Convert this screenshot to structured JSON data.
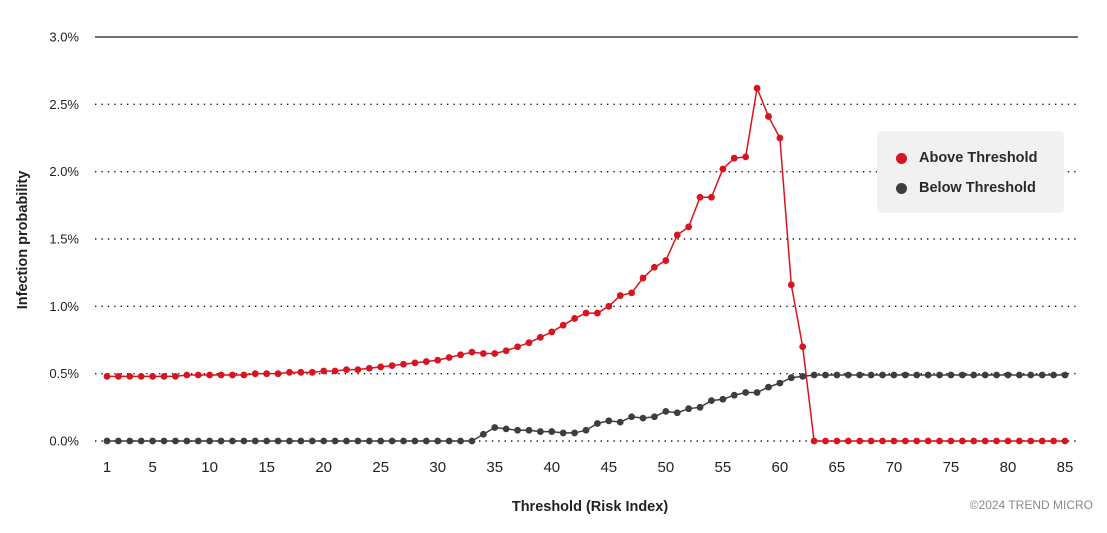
{
  "chart_data": {
    "type": "line",
    "xlabel": "Threshold (Risk Index)",
    "ylabel": "Infection probability",
    "ylim": [
      0,
      3.0
    ],
    "xlim": [
      1,
      85
    ],
    "y_ticks": [
      "0.0%",
      "0.5%",
      "1.0%",
      "1.5%",
      "2.0%",
      "2.5%",
      "3.0%"
    ],
    "x_ticks": [
      "1",
      "5",
      "10",
      "15",
      "20",
      "25",
      "30",
      "35",
      "40",
      "45",
      "50",
      "55",
      "60",
      "65",
      "70",
      "75",
      "80",
      "85"
    ],
    "grid": "horizontal dotted",
    "legend_position": "top-right",
    "series": [
      {
        "name": "Above Threshold",
        "color": "#d7141f",
        "x": [
          1,
          2,
          3,
          4,
          5,
          6,
          7,
          8,
          9,
          10,
          11,
          12,
          13,
          14,
          15,
          16,
          17,
          18,
          19,
          20,
          21,
          22,
          23,
          24,
          25,
          26,
          27,
          28,
          29,
          30,
          31,
          32,
          33,
          34,
          35,
          36,
          37,
          38,
          39,
          40,
          41,
          42,
          43,
          44,
          45,
          46,
          47,
          48,
          49,
          50,
          51,
          52,
          53,
          54,
          55,
          56,
          57,
          58,
          59,
          60,
          61,
          62,
          63,
          64,
          65,
          66,
          67,
          68,
          69,
          70,
          71,
          72,
          73,
          74,
          75,
          76,
          77,
          78,
          79,
          80,
          81,
          82,
          83,
          84,
          85
        ],
        "values": [
          0.48,
          0.48,
          0.48,
          0.48,
          0.48,
          0.48,
          0.48,
          0.49,
          0.49,
          0.49,
          0.49,
          0.49,
          0.49,
          0.5,
          0.5,
          0.5,
          0.51,
          0.51,
          0.51,
          0.52,
          0.52,
          0.53,
          0.53,
          0.54,
          0.55,
          0.56,
          0.57,
          0.58,
          0.59,
          0.6,
          0.62,
          0.64,
          0.66,
          0.65,
          0.65,
          0.67,
          0.7,
          0.73,
          0.77,
          0.81,
          0.86,
          0.91,
          0.95,
          0.95,
          1.0,
          1.08,
          1.1,
          1.21,
          1.29,
          1.34,
          1.53,
          1.59,
          1.81,
          1.81,
          2.02,
          2.1,
          2.11,
          2.62,
          2.41,
          2.25,
          1.16,
          0.7,
          0.0,
          0.0,
          0.0,
          0.0,
          0.0,
          0.0,
          0.0,
          0.0,
          0.0,
          0.0,
          0.0,
          0.0,
          0.0,
          0.0,
          0.0,
          0.0,
          0.0,
          0.0,
          0.0,
          0.0,
          0.0,
          0.0,
          0.0
        ]
      },
      {
        "name": "Below Threshold",
        "color": "#3d3d3d",
        "x": [
          1,
          2,
          3,
          4,
          5,
          6,
          7,
          8,
          9,
          10,
          11,
          12,
          13,
          14,
          15,
          16,
          17,
          18,
          19,
          20,
          21,
          22,
          23,
          24,
          25,
          26,
          27,
          28,
          29,
          30,
          31,
          32,
          33,
          34,
          35,
          36,
          37,
          38,
          39,
          40,
          41,
          42,
          43,
          44,
          45,
          46,
          47,
          48,
          49,
          50,
          51,
          52,
          53,
          54,
          55,
          56,
          57,
          58,
          59,
          60,
          61,
          62,
          63,
          64,
          65,
          66,
          67,
          68,
          69,
          70,
          71,
          72,
          73,
          74,
          75,
          76,
          77,
          78,
          79,
          80,
          81,
          82,
          83,
          84,
          85
        ],
        "values": [
          0.0,
          0.0,
          0.0,
          0.0,
          0.0,
          0.0,
          0.0,
          0.0,
          0.0,
          0.0,
          0.0,
          0.0,
          0.0,
          0.0,
          0.0,
          0.0,
          0.0,
          0.0,
          0.0,
          0.0,
          0.0,
          0.0,
          0.0,
          0.0,
          0.0,
          0.0,
          0.0,
          0.0,
          0.0,
          0.0,
          0.0,
          0.0,
          0.0,
          0.05,
          0.1,
          0.09,
          0.08,
          0.08,
          0.07,
          0.07,
          0.06,
          0.06,
          0.08,
          0.13,
          0.15,
          0.14,
          0.18,
          0.17,
          0.18,
          0.22,
          0.21,
          0.24,
          0.25,
          0.3,
          0.31,
          0.34,
          0.36,
          0.36,
          0.4,
          0.43,
          0.47,
          0.48,
          0.49,
          0.49,
          0.49,
          0.49,
          0.49,
          0.49,
          0.49,
          0.49,
          0.49,
          0.49,
          0.49,
          0.49,
          0.49,
          0.49,
          0.49,
          0.49,
          0.49,
          0.49,
          0.49,
          0.49,
          0.49,
          0.49,
          0.49
        ]
      }
    ]
  },
  "legend": {
    "items": [
      {
        "label": "Above Threshold",
        "color": "#d7141f"
      },
      {
        "label": "Below Threshold",
        "color": "#3d3d3d"
      }
    ]
  },
  "credit": "©2024 TREND MICRO"
}
